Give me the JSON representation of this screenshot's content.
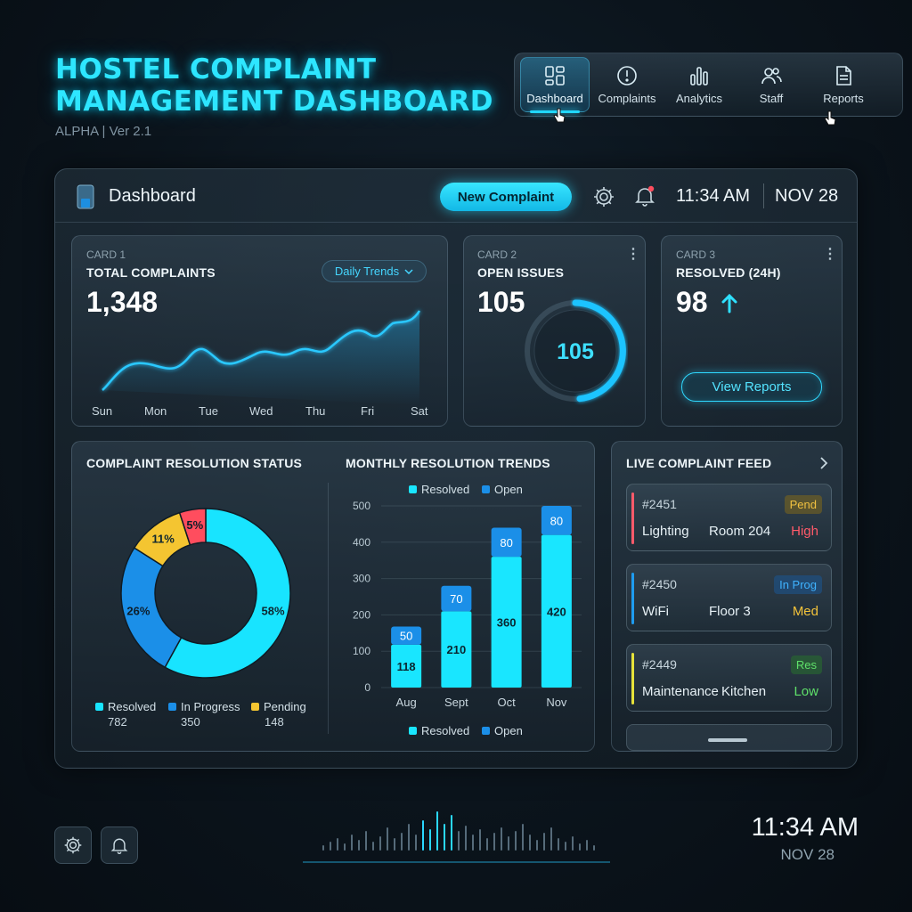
{
  "header": {
    "title": "HOSTEL COMPLAINT MANAGEMENT DASHBOARD",
    "version": "ALPHA | Ver 2.1"
  },
  "nav": {
    "items": [
      {
        "label": "Dashboard",
        "icon": "dashboard-icon",
        "active": true
      },
      {
        "label": "Complaints",
        "icon": "alert-circle-icon"
      },
      {
        "label": "Analytics",
        "icon": "bar-chart-icon"
      },
      {
        "label": "Staff",
        "icon": "users-icon"
      },
      {
        "label": "Reports",
        "icon": "document-icon"
      }
    ]
  },
  "panel": {
    "title": "Dashboard",
    "new_complaint": "New Complaint",
    "time": "11:34 AM",
    "date": "NOV 28",
    "notification_dot_color": "#ff4d5e"
  },
  "cards": {
    "total": {
      "tag": "CARD 1",
      "title": "TOTAL COMPLAINTS",
      "value": "1,348",
      "filter": "Daily Trends",
      "days": [
        "Sun",
        "Mon",
        "Tue",
        "Wed",
        "Thu",
        "Fri",
        "Sat"
      ]
    },
    "open": {
      "tag": "CARD 2",
      "title": "OPEN ISSUES",
      "value": "105",
      "gauge_value": "105"
    },
    "resolved": {
      "tag": "CARD 3",
      "title": "RESOLVED (24H)",
      "value": "98",
      "button": "View Reports"
    }
  },
  "resolution_status": {
    "title": "COMPLAINT RESOLUTION STATUS",
    "legend": [
      {
        "label": "Resolved",
        "value": "782",
        "color": "#18e4ff"
      },
      {
        "label": "In Progress",
        "value": "350",
        "color": "#1b8fe8"
      },
      {
        "label": "Pending",
        "value": "148",
        "color": "#f4c531"
      }
    ]
  },
  "monthly": {
    "title": "MONTHLY RESOLUTION TRENDS",
    "legend_top": [
      "Resolved",
      "Open"
    ],
    "legend_bottom": [
      "Resolved",
      "Open"
    ]
  },
  "feed": {
    "title": "LIVE COMPLAINT FEED",
    "items": [
      {
        "id": "#2451",
        "status": "Pend",
        "category": "Lighting",
        "location": "Room 204",
        "priority": "High",
        "bar_color": "#ff5a6a",
        "status_color": "#f0c040",
        "priority_color": "#ff5a6a"
      },
      {
        "id": "#2450",
        "status": "In Prog",
        "category": "WiFi",
        "location": "Floor 3",
        "priority": "Med",
        "bar_color": "#1e9cf0",
        "status_color": "#3fb2ff",
        "priority_color": "#f3c33a"
      },
      {
        "id": "#2449",
        "status": "Res",
        "category": "Maintenance",
        "location": "Kitchen",
        "priority": "Low",
        "bar_color": "#e6e23a",
        "status_color": "#5fe06a",
        "priority_color": "#5fe06a"
      }
    ]
  },
  "footer": {
    "time": "11:34 AM",
    "date": "NOV 28"
  },
  "chart_data": [
    {
      "type": "line",
      "title": "TOTAL COMPLAINTS",
      "categories": [
        "Sun",
        "Mon",
        "Tue",
        "Wed",
        "Thu",
        "Fri",
        "Sat"
      ],
      "values": [
        1,
        5,
        7,
        8,
        10,
        12,
        18
      ],
      "grid": false
    },
    {
      "type": "pie",
      "title": "COMPLAINT RESOLUTION STATUS",
      "donut": true,
      "slices": [
        {
          "label": "Resolved",
          "value": 58,
          "color": "#18e4ff"
        },
        {
          "label": "In Progress",
          "value": 26,
          "color": "#1b8fe8"
        },
        {
          "label": "Pending",
          "value": 11,
          "color": "#f4c531"
        },
        {
          "label": "",
          "value": 5,
          "color": "#ff4d5e"
        }
      ]
    },
    {
      "type": "bar",
      "stacked": true,
      "title": "MONTHLY RESOLUTION TRENDS",
      "categories": [
        "Aug",
        "Sept",
        "Oct",
        "Nov"
      ],
      "series": [
        {
          "name": "Resolved",
          "values": [
            118,
            210,
            360,
            420
          ],
          "color": "#19e6ff"
        },
        {
          "name": "Open",
          "values": [
            50,
            70,
            80,
            80
          ],
          "color": "#1b8fe8"
        }
      ],
      "ylim": [
        0,
        500
      ],
      "yticks": [
        0,
        100,
        200,
        300,
        400,
        500
      ],
      "grid": true,
      "legend": "top"
    }
  ]
}
